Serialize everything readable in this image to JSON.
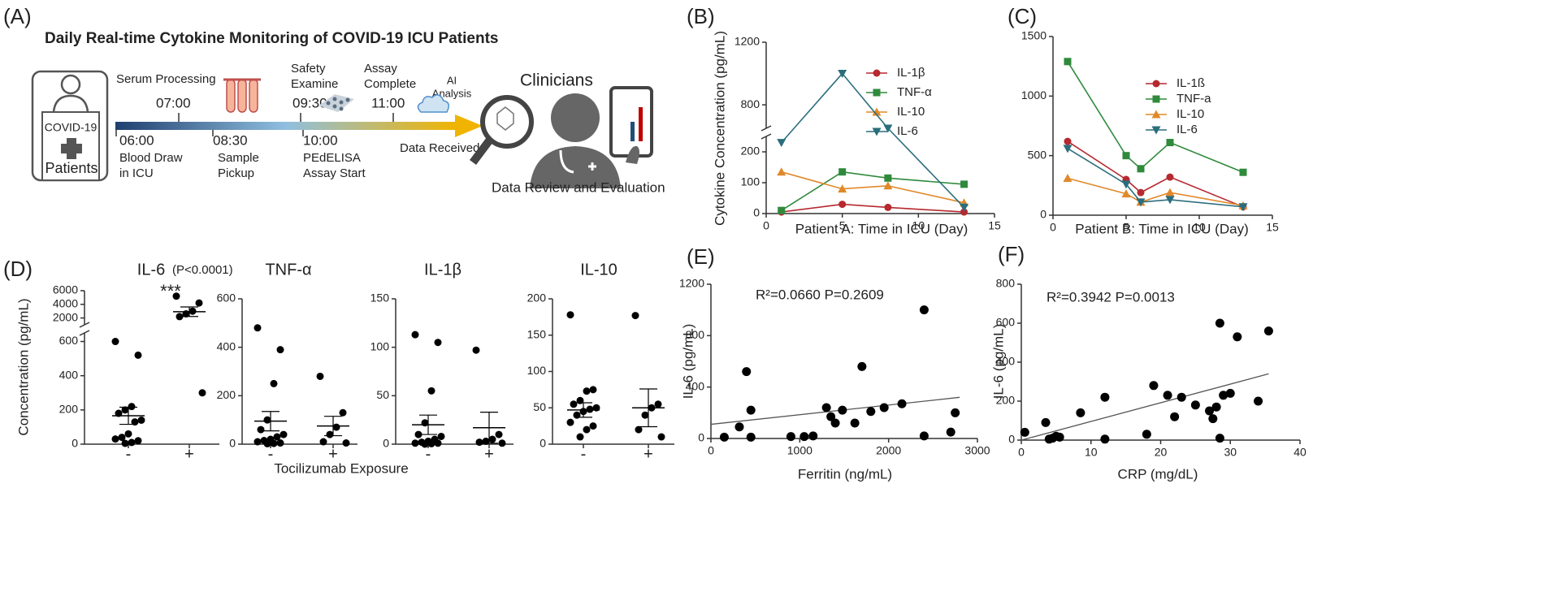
{
  "diagram": {
    "label": "(A)",
    "title": "Daily Real-time Cytokine Monitoring of COVID-19 ICU Patients",
    "patient_box": [
      "COVID-19",
      "Patients"
    ],
    "top_events": [
      {
        "lines": [
          "Serum Processing"
        ],
        "time": "07:00"
      },
      {
        "lines": [
          "Safety",
          "Examine"
        ],
        "time": "09:30"
      },
      {
        "lines": [
          "Assay",
          "Complete"
        ],
        "time": "11:00"
      }
    ],
    "ai": [
      "AI",
      "Analysis"
    ],
    "bottom_events": [
      {
        "time": "06:00",
        "lines": [
          "Blood Draw",
          "in ICU"
        ]
      },
      {
        "time": "08:30",
        "lines": [
          "Sample",
          "Pickup"
        ]
      },
      {
        "time": "10:00",
        "lines": [
          "PEdELISA",
          "Assay Start"
        ]
      }
    ],
    "end_label": "Data Received",
    "clinicians": "Clinicians",
    "caption": "Data Review and Evaluation"
  },
  "chart_data": [
    {
      "panel": "(B)",
      "type": "line",
      "ylabel": "Cytokine Concentration (pg/mL)",
      "xlabel": "Patient A: Time in ICU (Day)",
      "x": [
        1,
        5,
        8,
        13
      ],
      "series": [
        {
          "name": "IL-1β",
          "color": "#b5292f",
          "marker": "circle",
          "values": [
            5,
            30,
            20,
            5
          ]
        },
        {
          "name": "TNF-α",
          "color": "#2f8a3c",
          "marker": "square",
          "values": [
            10,
            135,
            115,
            95
          ]
        },
        {
          "name": "IL-10",
          "color": "#e0892a",
          "marker": "triangle-up",
          "values": [
            135,
            80,
            90,
            35
          ]
        },
        {
          "name": "IL-6",
          "color": "#2b6d7c",
          "marker": "triangle-down",
          "values": [
            230,
            1000,
            650,
            20
          ]
        }
      ],
      "xlim": [
        0,
        15
      ],
      "xticks": [
        0,
        5,
        10,
        15
      ],
      "ylim": [
        0,
        1200
      ],
      "yticks": [
        0,
        100,
        200,
        800,
        1200
      ],
      "y_break": [
        250,
        650
      ]
    },
    {
      "panel": "(C)",
      "type": "line",
      "xlabel": "Patient B: Time in ICU (Day)",
      "x": [
        1,
        5,
        6,
        8,
        13
      ],
      "series": [
        {
          "name": "IL-1ß",
          "color": "#b5292f",
          "marker": "circle",
          "values": [
            620,
            300,
            190,
            320,
            70
          ]
        },
        {
          "name": "TNF-a",
          "color": "#2f8a3c",
          "marker": "square",
          "values": [
            1290,
            500,
            390,
            610,
            360
          ]
        },
        {
          "name": "IL-10",
          "color": "#e0892a",
          "marker": "triangle-up",
          "values": [
            310,
            180,
            110,
            190,
            80
          ]
        },
        {
          "name": "IL-6",
          "color": "#2b6d7c",
          "marker": "triangle-down",
          "values": [
            560,
            260,
            110,
            130,
            70
          ]
        }
      ],
      "xlim": [
        0,
        15
      ],
      "xticks": [
        0,
        5,
        10,
        15
      ],
      "ylim": [
        0,
        1500
      ],
      "yticks": [
        0,
        500,
        1000,
        1500
      ]
    },
    {
      "panel": "(D)",
      "type": "strip",
      "title": "IL-6",
      "subtitle": "(P<0.0001)",
      "annotation": "***",
      "ylabel": "Concentration (pg/mL)",
      "xlabel": "Tocilizumab Exposure",
      "color": "#000000",
      "categories": [
        "-",
        "+"
      ],
      "groups": [
        [
          600,
          520,
          220,
          200,
          180,
          140,
          130,
          60,
          40,
          30,
          20,
          10,
          5
        ],
        [
          5200,
          4200,
          3000,
          2600,
          2200,
          300
        ]
      ],
      "means": [
        166,
        2917
      ],
      "sems": [
        50,
        700
      ],
      "ylim": [
        0,
        6000
      ],
      "yticks": [
        0,
        200,
        400,
        600,
        2000,
        4000,
        6000
      ],
      "y_break": [
        650,
        1000
      ]
    },
    {
      "type": "strip",
      "title": "TNF-α",
      "color": "#000000",
      "categories": [
        "-",
        "+"
      ],
      "groups": [
        [
          480,
          390,
          250,
          100,
          60,
          40,
          30,
          20,
          15,
          10,
          5,
          3,
          2
        ],
        [
          280,
          130,
          70,
          40,
          10,
          5
        ]
      ],
      "means": [
        95,
        75
      ],
      "sems": [
        40,
        40
      ],
      "ylim": [
        0,
        600
      ],
      "yticks": [
        0,
        200,
        400,
        600
      ]
    },
    {
      "type": "strip",
      "title": "IL-1β",
      "color": "#000000",
      "categories": [
        "-",
        "+"
      ],
      "groups": [
        [
          113,
          105,
          55,
          22,
          10,
          8,
          5,
          3,
          2,
          1,
          1,
          0.5,
          0
        ],
        [
          97,
          10,
          5,
          3,
          2,
          1
        ]
      ],
      "means": [
        20,
        17
      ],
      "sems": [
        10,
        16
      ],
      "ylim": [
        0,
        150
      ],
      "yticks": [
        0,
        50,
        100,
        150
      ]
    },
    {
      "type": "strip",
      "title": "IL-10",
      "color": "#000000",
      "categories": [
        "-",
        "+"
      ],
      "groups": [
        [
          178,
          75,
          73,
          60,
          55,
          50,
          48,
          45,
          40,
          30,
          25,
          20,
          10
        ],
        [
          177,
          55,
          50,
          40,
          20,
          10
        ]
      ],
      "means": [
        47,
        50
      ],
      "sems": [
        10,
        26
      ],
      "ylim": [
        0,
        200
      ],
      "yticks": [
        0,
        50,
        100,
        150,
        200
      ]
    },
    {
      "panel": "(E)",
      "type": "scatter",
      "annotation": "R²=0.0660 P=0.2609",
      "xlabel": "Ferritin (ng/mL)",
      "ylabel": "IL-6 (pg/mL)",
      "color": "#000000",
      "x": [
        150,
        320,
        400,
        450,
        450,
        900,
        1050,
        1150,
        1300,
        1350,
        1400,
        1480,
        1620,
        1700,
        1800,
        1950,
        2150,
        2400,
        2400,
        2700,
        2750
      ],
      "values": [
        10,
        90,
        520,
        10,
        220,
        15,
        15,
        20,
        240,
        170,
        120,
        220,
        120,
        560,
        210,
        240,
        270,
        1000,
        20,
        50,
        200
      ],
      "fit": {
        "color": "#555555",
        "x": [
          0,
          2800
        ],
        "values": [
          110,
          320
        ]
      },
      "xlim": [
        0,
        3000
      ],
      "xticks": [
        0,
        1000,
        2000,
        3000
      ],
      "ylim": [
        0,
        1200
      ],
      "yticks": [
        0,
        400,
        800,
        1200
      ]
    },
    {
      "panel": "(F)",
      "type": "scatter",
      "annotation": "R²=0.3942 P=0.0013",
      "xlabel": "CRP (mg/dL)",
      "ylabel": "IL-6 (pg/mL)",
      "color": "#000000",
      "x": [
        0.5,
        3.5,
        4,
        4.5,
        5,
        5.5,
        8.5,
        12,
        12,
        18,
        19,
        21,
        22,
        23,
        25,
        27,
        27.5,
        28,
        28.5,
        28.5,
        29,
        30,
        31,
        34,
        35.5
      ],
      "values": [
        40,
        90,
        5,
        10,
        20,
        15,
        140,
        220,
        5,
        30,
        280,
        230,
        120,
        220,
        180,
        150,
        110,
        170,
        600,
        10,
        230,
        240,
        530,
        200,
        560
      ],
      "fit": {
        "color": "#555555",
        "x": [
          0,
          35.5
        ],
        "values": [
          0,
          340
        ]
      },
      "xlim": [
        0,
        40
      ],
      "xticks": [
        0,
        10,
        20,
        30,
        40
      ],
      "ylim": [
        0,
        800
      ],
      "yticks": [
        0,
        200,
        400,
        600,
        800
      ]
    }
  ]
}
